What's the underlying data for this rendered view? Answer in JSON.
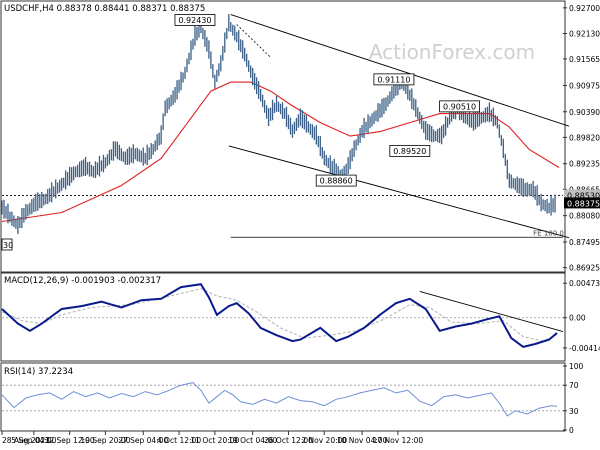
{
  "watermark": "ActionForex.com",
  "chart_data": [
    {
      "type": "candlestick",
      "title": "USDCHF,H4 0.88378 0.88441 0.88371 0.88375",
      "yticks": [
        "0.92700",
        "0.92130",
        "0.91565",
        "0.90975",
        "0.90390",
        "0.89820",
        "0.89235",
        "0.88665",
        "0.88080",
        "0.87495",
        "0.86925"
      ],
      "y_tick_values": [
        0.927,
        0.9213,
        0.91565,
        0.90975,
        0.9039,
        0.8982,
        0.89235,
        0.88665,
        0.8808,
        0.87495,
        0.86925
      ],
      "ylim": [
        0.8685,
        0.9283
      ],
      "current_price_label": "0.88375",
      "ref_level_label": "0.88530",
      "ref_level_value": 0.8853,
      "annotations": [
        {
          "text": "0.92430",
          "x": 97,
          "y": 0.9243
        },
        {
          "text": "0.91110",
          "x": 197,
          "y": 0.9111
        },
        {
          "text": "0.90510",
          "x": 230,
          "y": 0.9051
        },
        {
          "text": "0.89520",
          "x": 205,
          "y": 0.8952
        },
        {
          "text": "0.88860",
          "x": 168,
          "y": 0.8886
        }
      ],
      "edge_label": "30",
      "fe_label": "FE 100.0",
      "fe_level": 0.876,
      "channel_upper": [
        [
          115,
          0.9255
        ],
        [
          285,
          0.9007
        ]
      ],
      "channel_lower": [
        [
          114,
          0.8963
        ],
        [
          285,
          0.8759
        ]
      ],
      "dotted_line": [
        [
          118,
          0.9233
        ],
        [
          135,
          0.916
        ]
      ],
      "price_path": [
        [
          0,
          0.8825
        ],
        [
          4,
          0.8805
        ],
        [
          8,
          0.8785
        ],
        [
          12,
          0.8815
        ],
        [
          17,
          0.8835
        ],
        [
          22,
          0.8845
        ],
        [
          27,
          0.8865
        ],
        [
          32,
          0.8885
        ],
        [
          37,
          0.8905
        ],
        [
          42,
          0.8915
        ],
        [
          46,
          0.8905
        ],
        [
          52,
          0.8925
        ],
        [
          57,
          0.8955
        ],
        [
          62,
          0.8935
        ],
        [
          67,
          0.8945
        ],
        [
          72,
          0.8935
        ],
        [
          76,
          0.8955
        ],
        [
          80,
          0.8985
        ],
        [
          82,
          0.9045
        ],
        [
          87,
          0.9075
        ],
        [
          92,
          0.9125
        ],
        [
          97,
          0.9205
        ],
        [
          100,
          0.9225
        ],
        [
          104,
          0.9175
        ],
        [
          107,
          0.9105
        ],
        [
          110,
          0.9145
        ],
        [
          114,
          0.9235
        ],
        [
          118,
          0.9205
        ],
        [
          122,
          0.9165
        ],
        [
          126,
          0.9115
        ],
        [
          130,
          0.9075
        ],
        [
          134,
          0.9025
        ],
        [
          138,
          0.9055
        ],
        [
          142,
          0.9035
        ],
        [
          146,
          0.8995
        ],
        [
          150,
          0.9025
        ],
        [
          154,
          0.9005
        ],
        [
          158,
          0.8985
        ],
        [
          162,
          0.8935
        ],
        [
          166,
          0.8915
        ],
        [
          170,
          0.8895
        ],
        [
          173,
          0.8905
        ],
        [
          177,
          0.8955
        ],
        [
          181,
          0.8995
        ],
        [
          185,
          0.9015
        ],
        [
          189,
          0.9035
        ],
        [
          193,
          0.9055
        ],
        [
          197,
          0.9085
        ],
        [
          201,
          0.9105
        ],
        [
          205,
          0.9075
        ],
        [
          209,
          0.9035
        ],
        [
          213,
          0.8995
        ],
        [
          217,
          0.8985
        ],
        [
          221,
          0.8985
        ],
        [
          225,
          0.9025
        ],
        [
          229,
          0.9045
        ],
        [
          233,
          0.9025
        ],
        [
          237,
          0.9015
        ],
        [
          241,
          0.9025
        ],
        [
          245,
          0.9035
        ],
        [
          249,
          0.9015
        ],
        [
          252,
          0.8955
        ],
        [
          255,
          0.8885
        ],
        [
          259,
          0.8875
        ],
        [
          263,
          0.8865
        ],
        [
          267,
          0.8865
        ],
        [
          271,
          0.8835
        ],
        [
          275,
          0.8825
        ],
        [
          279,
          0.8835
        ]
      ],
      "ma_path": [
        [
          0,
          0.8795
        ],
        [
          30,
          0.8815
        ],
        [
          60,
          0.8875
        ],
        [
          80,
          0.8935
        ],
        [
          95,
          0.9025
        ],
        [
          105,
          0.9085
        ],
        [
          115,
          0.9105
        ],
        [
          125,
          0.9105
        ],
        [
          135,
          0.9085
        ],
        [
          145,
          0.9055
        ],
        [
          160,
          0.9015
        ],
        [
          175,
          0.8985
        ],
        [
          190,
          0.8995
        ],
        [
          205,
          0.9015
        ],
        [
          220,
          0.9035
        ],
        [
          235,
          0.9035
        ],
        [
          245,
          0.9035
        ],
        [
          255,
          0.9005
        ],
        [
          265,
          0.8955
        ],
        [
          280,
          0.8915
        ]
      ],
      "ylabel": "",
      "xlabel": ""
    },
    {
      "type": "line",
      "title": "MACD(12,26,9) -0.001903 -0.002317",
      "yticks": [
        "0.004738",
        "0.00",
        "-0.004144"
      ],
      "y_tick_values": [
        0.004738,
        0.0,
        -0.004144
      ],
      "ylim": [
        -0.0058,
        0.006
      ],
      "macd_path": [
        [
          0,
          0.0012
        ],
        [
          8,
          -0.0008
        ],
        [
          14,
          -0.0018
        ],
        [
          20,
          -0.0008
        ],
        [
          30,
          0.0012
        ],
        [
          40,
          0.0016
        ],
        [
          50,
          0.0022
        ],
        [
          60,
          0.0014
        ],
        [
          70,
          0.0024
        ],
        [
          80,
          0.0026
        ],
        [
          90,
          0.0042
        ],
        [
          100,
          0.0046
        ],
        [
          104,
          0.0028
        ],
        [
          108,
          0.0004
        ],
        [
          114,
          0.0016
        ],
        [
          118,
          0.002
        ],
        [
          124,
          0.0006
        ],
        [
          130,
          -0.0014
        ],
        [
          138,
          -0.0024
        ],
        [
          146,
          -0.0032
        ],
        [
          150,
          -0.003
        ],
        [
          160,
          -0.0014
        ],
        [
          168,
          -0.0032
        ],
        [
          174,
          -0.0026
        ],
        [
          182,
          -0.0014
        ],
        [
          190,
          0.0004
        ],
        [
          198,
          0.002
        ],
        [
          205,
          0.0026
        ],
        [
          213,
          0.0012
        ],
        [
          220,
          -0.0018
        ],
        [
          228,
          -0.0012
        ],
        [
          236,
          -0.0008
        ],
        [
          244,
          -0.0002
        ],
        [
          250,
          0.0002
        ],
        [
          256,
          -0.0028
        ],
        [
          262,
          -0.004
        ],
        [
          268,
          -0.0036
        ],
        [
          275,
          -0.003
        ],
        [
          279,
          -0.0021
        ]
      ],
      "signal_path": [
        [
          0,
          0.0008
        ],
        [
          10,
          -0.0004
        ],
        [
          20,
          -0.0008
        ],
        [
          30,
          0.0004
        ],
        [
          45,
          0.0014
        ],
        [
          65,
          0.0018
        ],
        [
          85,
          0.003
        ],
        [
          100,
          0.004
        ],
        [
          108,
          0.003
        ],
        [
          118,
          0.0024
        ],
        [
          128,
          0.0008
        ],
        [
          140,
          -0.0014
        ],
        [
          152,
          -0.0028
        ],
        [
          165,
          -0.0024
        ],
        [
          178,
          -0.0018
        ],
        [
          192,
          -0.0002
        ],
        [
          205,
          0.0018
        ],
        [
          215,
          0.0014
        ],
        [
          226,
          -0.0006
        ],
        [
          240,
          -0.0008
        ],
        [
          252,
          -0.0004
        ],
        [
          262,
          -0.0026
        ],
        [
          272,
          -0.0032
        ],
        [
          279,
          -0.0023
        ]
      ],
      "trend_line": [
        [
          210,
          0.0036
        ],
        [
          282,
          -0.0019
        ]
      ],
      "zero_level": 0.0
    },
    {
      "type": "line",
      "title": "RSI(14) 37.2234",
      "yticks": [
        "100",
        "70",
        "30",
        "0"
      ],
      "y_tick_values": [
        100,
        70,
        30,
        0
      ],
      "ylim": [
        0,
        100
      ],
      "levels": [
        70,
        30
      ],
      "rsi_path": [
        [
          0,
          55
        ],
        [
          6,
          35
        ],
        [
          12,
          50
        ],
        [
          18,
          55
        ],
        [
          24,
          58
        ],
        [
          30,
          48
        ],
        [
          36,
          60
        ],
        [
          42,
          52
        ],
        [
          48,
          58
        ],
        [
          54,
          50
        ],
        [
          60,
          57
        ],
        [
          66,
          52
        ],
        [
          72,
          60
        ],
        [
          78,
          55
        ],
        [
          84,
          62
        ],
        [
          90,
          70
        ],
        [
          96,
          74
        ],
        [
          100,
          62
        ],
        [
          104,
          42
        ],
        [
          108,
          52
        ],
        [
          112,
          62
        ],
        [
          116,
          55
        ],
        [
          120,
          44
        ],
        [
          126,
          40
        ],
        [
          132,
          48
        ],
        [
          138,
          42
        ],
        [
          144,
          52
        ],
        [
          150,
          46
        ],
        [
          156,
          44
        ],
        [
          162,
          38
        ],
        [
          168,
          48
        ],
        [
          174,
          52
        ],
        [
          180,
          58
        ],
        [
          186,
          62
        ],
        [
          192,
          66
        ],
        [
          198,
          58
        ],
        [
          204,
          62
        ],
        [
          210,
          45
        ],
        [
          216,
          38
        ],
        [
          222,
          52
        ],
        [
          228,
          55
        ],
        [
          234,
          50
        ],
        [
          240,
          54
        ],
        [
          246,
          58
        ],
        [
          250,
          42
        ],
        [
          254,
          22
        ],
        [
          258,
          30
        ],
        [
          264,
          25
        ],
        [
          270,
          34
        ],
        [
          276,
          38
        ],
        [
          279,
          37
        ]
      ]
    }
  ],
  "x_axis": {
    "labels": [
      "28 Aug 2023",
      "5 Sep 04:00",
      "12 Sep 12:00",
      "19 Sep 20:00",
      "27 Sep 04:00",
      "4 Oct 12:00",
      "11 Oct 20:00",
      "19 Oct 04:00",
      "26 Oct 12:00",
      "2 Nov 20:00",
      "10 Nov 04:00",
      "17 Nov 12:00"
    ],
    "bar_index": [
      0,
      16,
      34,
      52,
      71,
      89,
      107,
      126,
      144,
      162,
      181,
      199
    ],
    "bar_max": 282
  },
  "colors": {
    "price": "#3b5f86",
    "ma": "#e02020",
    "channel": "#000000",
    "macd": "#0a1a8c",
    "signal": "#b0b0b0",
    "rsi": "#6d8fd6",
    "price_label_bg": "#000000",
    "ref_label_bg": "#c0c0c0",
    "grid": "#888888",
    "watermark": "#d0d0d0"
  }
}
